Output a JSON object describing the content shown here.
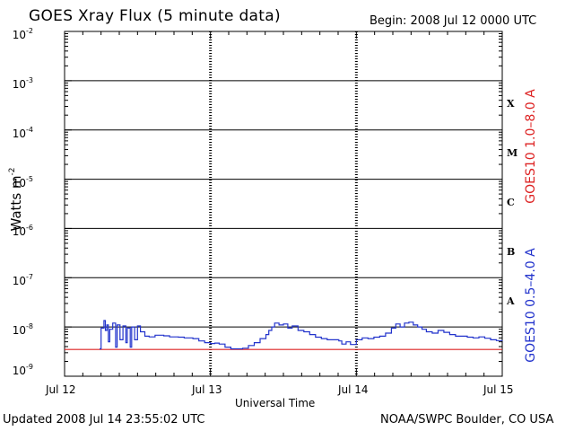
{
  "header": {
    "title": "GOES Xray Flux (5 minute data)",
    "begin": "Begin:  2008 Jul 12 0000 UTC"
  },
  "footer": {
    "updated": "Updated 2008 Jul 14 23:55:02 UTC",
    "credit": "NOAA/SWPC Boulder, CO USA"
  },
  "colors": {
    "long_channel": "#dd2222",
    "short_channel": "#2233cc",
    "grid": "#000000"
  },
  "chart_data": {
    "type": "line",
    "xlabel": "Universal Time",
    "ylabel": "Watts m",
    "ylabel_sup": "-2",
    "y_scale": "log",
    "ylim": [
      1e-09,
      0.01
    ],
    "y_ticks": [
      {
        "base": "10",
        "exp": "-2"
      },
      {
        "base": "10",
        "exp": "-3"
      },
      {
        "base": "10",
        "exp": "-4"
      },
      {
        "base": "10",
        "exp": "-5"
      },
      {
        "base": "10",
        "exp": "-6"
      },
      {
        "base": "10",
        "exp": "-7"
      },
      {
        "base": "10",
        "exp": "-8"
      },
      {
        "base": "10",
        "exp": "-9"
      }
    ],
    "x_unit": "day",
    "xlim": [
      0,
      3
    ],
    "x_ticks": [
      "Jul 12",
      "Jul 13",
      "Jul 14",
      "Jul 15"
    ],
    "flare_classes": [
      {
        "label": "X",
        "level": 0.0001
      },
      {
        "label": "M",
        "level": 1e-05
      },
      {
        "label": "C",
        "level": 1e-06
      },
      {
        "label": "B",
        "level": 1e-07
      },
      {
        "label": "A",
        "level": 1e-08
      }
    ],
    "series": [
      {
        "name": "GOES10 1.0–8.0 A",
        "color": "#dd2222",
        "points": [
          [
            0.0,
            3.5e-09
          ],
          [
            3.0,
            3.5e-09
          ]
        ]
      },
      {
        "name": "GOES10 0.5–4.0 A",
        "color": "#2233cc",
        "points": [
          [
            0.24,
            3.6e-09
          ],
          [
            0.25,
            9.5e-09
          ],
          [
            0.27,
            1.35e-08
          ],
          [
            0.28,
            8.5e-09
          ],
          [
            0.29,
            1.1e-08
          ],
          [
            0.3,
            5e-09
          ],
          [
            0.31,
            9e-09
          ],
          [
            0.33,
            1.2e-08
          ],
          [
            0.35,
            3.9e-09
          ],
          [
            0.36,
            1.1e-08
          ],
          [
            0.38,
            5.5e-09
          ],
          [
            0.4,
            1.05e-08
          ],
          [
            0.42,
            4.8e-09
          ],
          [
            0.43,
            9.5e-09
          ],
          [
            0.45,
            3.9e-09
          ],
          [
            0.46,
            1e-08
          ],
          [
            0.48,
            5.5e-09
          ],
          [
            0.5,
            1.05e-08
          ],
          [
            0.52,
            8e-09
          ],
          [
            0.55,
            6.5e-09
          ],
          [
            0.58,
            6.3e-09
          ],
          [
            0.62,
            6.8e-09
          ],
          [
            0.68,
            6.6e-09
          ],
          [
            0.72,
            6.3e-09
          ],
          [
            0.78,
            6.2e-09
          ],
          [
            0.82,
            6e-09
          ],
          [
            0.88,
            5.8e-09
          ],
          [
            0.92,
            5.2e-09
          ],
          [
            0.96,
            4.8e-09
          ],
          [
            1.0,
            4.6e-09
          ],
          [
            1.03,
            4.7e-09
          ],
          [
            1.06,
            4.5e-09
          ],
          [
            1.1,
            3.9e-09
          ],
          [
            1.14,
            3.6e-09
          ],
          [
            1.18,
            3.6e-09
          ],
          [
            1.22,
            3.7e-09
          ],
          [
            1.26,
            4.2e-09
          ],
          [
            1.3,
            4.8e-09
          ],
          [
            1.34,
            5.8e-09
          ],
          [
            1.38,
            7e-09
          ],
          [
            1.4,
            8.5e-09
          ],
          [
            1.42,
            1e-08
          ],
          [
            1.44,
            1.2e-08
          ],
          [
            1.47,
            1.1e-08
          ],
          [
            1.5,
            1.15e-08
          ],
          [
            1.53,
            9.5e-09
          ],
          [
            1.56,
            1.05e-08
          ],
          [
            1.6,
            8.5e-09
          ],
          [
            1.64,
            8e-09
          ],
          [
            1.68,
            7e-09
          ],
          [
            1.72,
            6.2e-09
          ],
          [
            1.76,
            5.8e-09
          ],
          [
            1.8,
            5.5e-09
          ],
          [
            1.84,
            5.5e-09
          ],
          [
            1.88,
            5.2e-09
          ],
          [
            1.9,
            4.5e-09
          ],
          [
            1.93,
            5e-09
          ],
          [
            1.96,
            4.4e-09
          ],
          [
            2.0,
            5.5e-09
          ],
          [
            2.04,
            6e-09
          ],
          [
            2.08,
            5.8e-09
          ],
          [
            2.12,
            6.2e-09
          ],
          [
            2.16,
            6.5e-09
          ],
          [
            2.2,
            7.5e-09
          ],
          [
            2.24,
            9.5e-09
          ],
          [
            2.27,
            1.15e-08
          ],
          [
            2.3,
            1e-08
          ],
          [
            2.33,
            1.2e-08
          ],
          [
            2.36,
            1.25e-08
          ],
          [
            2.39,
            1.1e-08
          ],
          [
            2.42,
            1e-08
          ],
          [
            2.45,
            9e-09
          ],
          [
            2.48,
            8e-09
          ],
          [
            2.52,
            7.5e-09
          ],
          [
            2.56,
            8.5e-09
          ],
          [
            2.6,
            7.8e-09
          ],
          [
            2.64,
            7e-09
          ],
          [
            2.68,
            6.5e-09
          ],
          [
            2.72,
            6.5e-09
          ],
          [
            2.76,
            6.2e-09
          ],
          [
            2.8,
            6e-09
          ],
          [
            2.84,
            6.3e-09
          ],
          [
            2.88,
            5.9e-09
          ],
          [
            2.92,
            5.5e-09
          ],
          [
            2.96,
            5.3e-09
          ],
          [
            3.0,
            5.2e-09
          ]
        ]
      }
    ]
  }
}
